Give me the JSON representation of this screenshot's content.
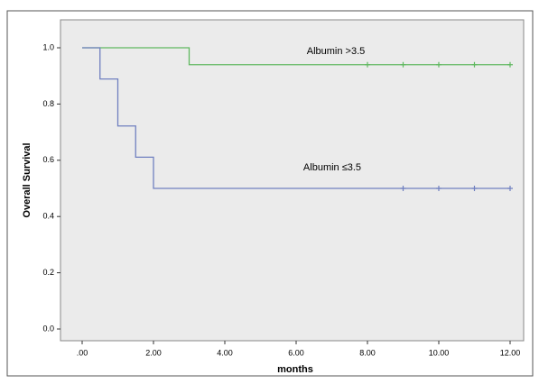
{
  "chart_data": {
    "type": "step",
    "xlabel": "months",
    "ylabel": "Overall Survival",
    "xlim": [
      0,
      12
    ],
    "ylim": [
      0,
      1
    ],
    "xticks": [
      {
        "value": 0,
        "label": ".00"
      },
      {
        "value": 2,
        "label": "2.00"
      },
      {
        "value": 4,
        "label": "4.00"
      },
      {
        "value": 6,
        "label": "6.00"
      },
      {
        "value": 8,
        "label": "8.00"
      },
      {
        "value": 10,
        "label": "10.00"
      },
      {
        "value": 12,
        "label": "12.00"
      }
    ],
    "yticks": [
      {
        "value": 0,
        "label": "0.0"
      },
      0.2,
      0.4,
      0.6,
      0.8,
      {
        "value": 1,
        "label": "1.0"
      }
    ],
    "series": [
      {
        "name": "Albumin >3.5",
        "color": "#5fb85f",
        "x": [
          0,
          3,
          12
        ],
        "values": [
          1,
          0.94,
          0.94
        ],
        "censored_x": [
          8,
          9,
          10,
          11,
          12
        ],
        "censored_values": [
          0.94,
          0.94,
          0.94,
          0.94,
          0.94
        ]
      },
      {
        "name": "Albumin ≤3.5",
        "color": "#7080c0",
        "x": [
          0,
          0.5,
          1,
          1.5,
          2,
          12
        ],
        "values": [
          1,
          0.889,
          0.722,
          0.611,
          0.5,
          0.5
        ],
        "censored_x": [
          9,
          10,
          11,
          12
        ],
        "censored_values": [
          0.5,
          0.5,
          0.5,
          0.5
        ]
      }
    ]
  }
}
